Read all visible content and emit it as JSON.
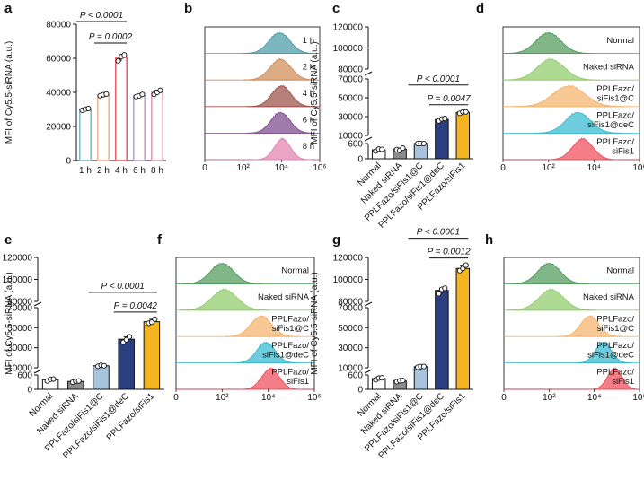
{
  "chart_data": [
    {
      "panel": "a",
      "type": "bar",
      "ylabel": "MFI of Cy5.5-siRNA (a.u.)",
      "categories": [
        "1 h",
        "2 h",
        "4 h",
        "6 h",
        "8 h"
      ],
      "values": [
        30000,
        38500,
        60500,
        38000,
        40000
      ],
      "points": [
        [
          29500,
          30200,
          30500
        ],
        [
          38000,
          38600,
          39000
        ],
        [
          58500,
          61000,
          62000
        ],
        [
          37500,
          38000,
          38800
        ],
        [
          38800,
          40000,
          41200
        ]
      ],
      "colors": [
        "#7fbcc8",
        "#f2b48c",
        "#e8636a",
        "#b6a3cf",
        "#e79ab8"
      ],
      "ylim": [
        0,
        80000
      ],
      "yticks": [
        "0",
        "20000",
        "40000",
        "60000",
        "80000"
      ],
      "yticks_values": [
        0,
        20000,
        40000,
        60000,
        80000
      ],
      "comparisons": [
        {
          "label": "P < 0.0001",
          "from": 0,
          "to": 2
        },
        {
          "label": "P = 0.0002",
          "from": 1,
          "to": 2
        }
      ]
    },
    {
      "panel": "b",
      "type": "histogram",
      "tracks": [
        "1 h",
        "2 h",
        "4 h",
        "6 h",
        "8 h"
      ],
      "colors": [
        "#4a9aa6",
        "#cf8c57",
        "#9a5048",
        "#7a4a8c",
        "#e37fb0"
      ],
      "peaks": [
        3.9,
        3.95,
        4.0,
        3.95,
        4.05
      ],
      "widths": [
        0.55,
        0.55,
        0.5,
        0.5,
        0.42
      ],
      "xticks": [
        "0",
        "10²",
        "10⁴",
        "10⁶"
      ],
      "xtick_values": [
        0,
        2,
        4,
        6
      ]
    },
    {
      "panel": "c",
      "type": "bar",
      "ylabel": "MFI of Cy5.5-siRNA (a.u.)",
      "categories": [
        "Normal",
        "Naked siRNA",
        "PPLFazo/siFis1@C",
        "PPLFazo/siFis1@deC",
        "PPLFazo/siFis1"
      ],
      "values": [
        350,
        380,
        8000,
        27000,
        34500
      ],
      "points": [
        [
          300,
          380,
          370
        ],
        [
          360,
          330,
          420
        ],
        [
          7500,
          8200,
          8300
        ],
        [
          25500,
          27500,
          28000
        ],
        [
          33500,
          35000,
          35000
        ]
      ],
      "colors": [
        "#ffffff",
        "#8c8c8c",
        "#a7c4dc",
        "#2b3f7f",
        "#f4b520"
      ],
      "yticks": [
        "0",
        "600",
        "10000",
        "30000",
        "50000",
        "70000",
        "80000",
        "100000",
        "120000"
      ],
      "yticks_values": [
        0,
        600,
        10000,
        30000,
        50000,
        70000,
        80000,
        100000,
        120000
      ],
      "comparisons": [
        {
          "label": "P < 0.0001",
          "from": 2,
          "to": 4
        },
        {
          "label": "P = 0.0047",
          "from": 3,
          "to": 4
        }
      ]
    },
    {
      "panel": "d",
      "type": "histogram",
      "tracks": [
        "Normal",
        "Naked siRNA",
        "PPLFazo/\nsiFis1@C",
        "PPLFazo/\nsiFis1@deC",
        "PPLFazo/\nsiFis1"
      ],
      "colors": [
        "#4f9a5a",
        "#8fcc6a",
        "#f4b36a",
        "#35b8d0",
        "#ee4c5a"
      ],
      "peaks": [
        2.0,
        2.1,
        2.9,
        3.3,
        3.5
      ],
      "widths": [
        0.55,
        0.6,
        0.7,
        0.55,
        0.45
      ],
      "xticks": [
        "0",
        "10²",
        "10⁴",
        "10⁶"
      ],
      "xtick_values": [
        0,
        2,
        4,
        6
      ]
    },
    {
      "panel": "e",
      "type": "bar",
      "ylabel": "MFI of Cy5.5-siRNA (a.u.)",
      "categories": [
        "Normal",
        "Naked siRNA",
        "PPLFazo/siFis1@C",
        "PPLFazo/siFis1@deC",
        "PPLFazo/siFis1"
      ],
      "values": [
        400,
        330,
        12000,
        38500,
        56000
      ],
      "points": [
        [
          350,
          420,
          430
        ],
        [
          300,
          340,
          350
        ],
        [
          11500,
          12500,
          12000
        ],
        [
          35500,
          38000,
          41000
        ],
        [
          54500,
          55500,
          58500
        ]
      ],
      "colors": [
        "#ffffff",
        "#8c8c8c",
        "#a7c4dc",
        "#2b3f7f",
        "#f4b520"
      ],
      "yticks": [
        "0",
        "600",
        "10000",
        "30000",
        "50000",
        "70000",
        "80000",
        "100000",
        "120000"
      ],
      "yticks_values": [
        0,
        600,
        10000,
        30000,
        50000,
        70000,
        80000,
        100000,
        120000
      ],
      "comparisons": [
        {
          "label": "P < 0.0001",
          "from": 2,
          "to": 4
        },
        {
          "label": "P = 0.0042",
          "from": 3,
          "to": 4
        }
      ]
    },
    {
      "panel": "f",
      "type": "histogram",
      "tracks": [
        "Normal",
        "Naked siRNA",
        "PPLFazo/\nsiFis1@C",
        "PPLFazo/\nsiFis1@deC",
        "PPLFazo/\nsiFis1"
      ],
      "colors": [
        "#4f9a5a",
        "#8fcc6a",
        "#f4b36a",
        "#35b8d0",
        "#ee4c5a"
      ],
      "peaks": [
        2.0,
        2.1,
        3.7,
        3.9,
        4.1
      ],
      "widths": [
        0.5,
        0.55,
        0.45,
        0.4,
        0.38
      ],
      "xticks": [
        "0",
        "10²",
        "10⁴",
        "10⁶"
      ],
      "xtick_values": [
        0,
        2,
        4,
        6
      ]
    },
    {
      "panel": "g",
      "type": "bar",
      "ylabel": "MFI of Cy5.5-siRNA (a.u.)",
      "categories": [
        "Normal",
        "Naked siRNA",
        "PPLFazo/siFis1@C",
        "PPLFazo/siFis1@deC",
        "PPLFazo/siFis1"
      ],
      "values": [
        450,
        350,
        11000,
        90000,
        110000
      ],
      "points": [
        [
          400,
          470,
          480
        ],
        [
          320,
          360,
          370
        ],
        [
          10500,
          11200,
          11300
        ],
        [
          87000,
          91000,
          92000
        ],
        [
          108000,
          110000,
          113000
        ]
      ],
      "colors": [
        "#ffffff",
        "#8c8c8c",
        "#a7c4dc",
        "#2b3f7f",
        "#f4b520"
      ],
      "yticks": [
        "0",
        "600",
        "10000",
        "30000",
        "50000",
        "70000",
        "80000",
        "100000",
        "120000"
      ],
      "yticks_values": [
        0,
        600,
        10000,
        30000,
        50000,
        70000,
        80000,
        100000,
        120000
      ],
      "comparisons": [
        {
          "label": "P < 0.0001",
          "from": 2,
          "to": 4
        },
        {
          "label": "P = 0.0012",
          "from": 3,
          "to": 4
        }
      ]
    },
    {
      "panel": "h",
      "type": "histogram",
      "tracks": [
        "Normal",
        "Naked siRNA",
        "PPLFazo/\nsiFis1@C",
        "PPLFazo/\nsiFis1@deC",
        "PPLFazo/\nsiFis1"
      ],
      "colors": [
        "#4f9a5a",
        "#8fcc6a",
        "#f4b36a",
        "#35b8d0",
        "#ee4c5a"
      ],
      "peaks": [
        2.0,
        2.1,
        3.8,
        4.4,
        4.9
      ],
      "widths": [
        0.5,
        0.55,
        0.4,
        0.35,
        0.32
      ],
      "xticks": [
        "0",
        "10²",
        "10⁴",
        "10⁶"
      ],
      "xtick_values": [
        0,
        2,
        4,
        6
      ]
    }
  ]
}
